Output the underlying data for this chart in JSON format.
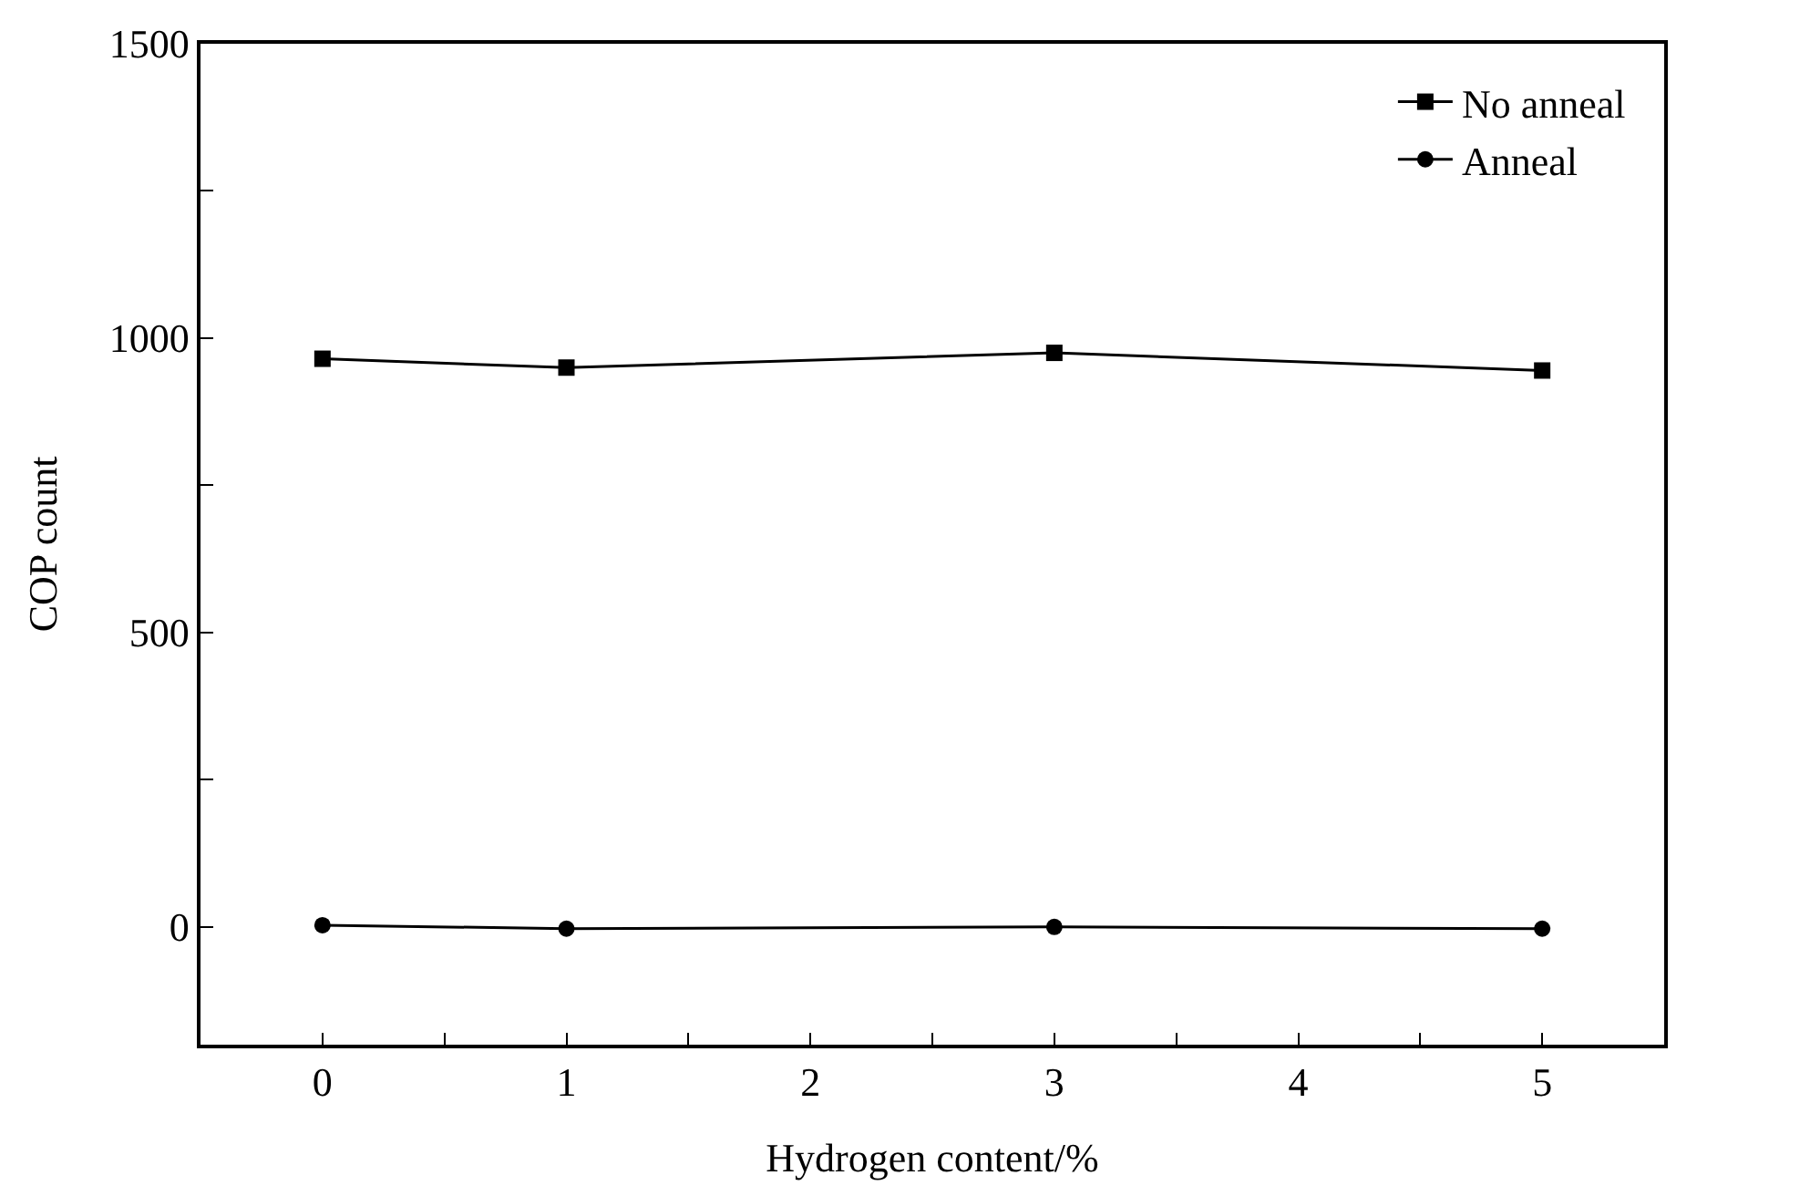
{
  "chart_data": {
    "type": "line",
    "xlabel": "Hydrogen content/%",
    "ylabel": "COP count",
    "x": [
      0,
      1,
      3,
      5
    ],
    "series": [
      {
        "name": "No anneal",
        "color": "#000000",
        "marker": "square",
        "values": [
          965,
          950,
          975,
          945
        ]
      },
      {
        "name": "Anneal",
        "color": "#000000",
        "marker": "circle",
        "values": [
          3,
          -3,
          0,
          -3
        ]
      }
    ],
    "xlim": [
      -0.5,
      5.5
    ],
    "xticks": [
      0,
      {
        "value": 0.5,
        "label": null
      },
      1,
      {
        "value": 1.5,
        "label": null
      },
      2,
      {
        "value": 2.5,
        "label": null
      },
      3,
      {
        "value": 3.5,
        "label": null
      },
      4,
      {
        "value": 4.5,
        "label": null
      },
      5
    ],
    "ylim": [
      -200,
      1500
    ],
    "yticks": [
      0,
      {
        "value": 250,
        "label": null
      },
      500,
      {
        "value": 750,
        "label": null
      },
      1000,
      {
        "value": 1250,
        "label": null
      },
      1500
    ],
    "grid": false,
    "legend": "top right",
    "line_style": "solid"
  }
}
